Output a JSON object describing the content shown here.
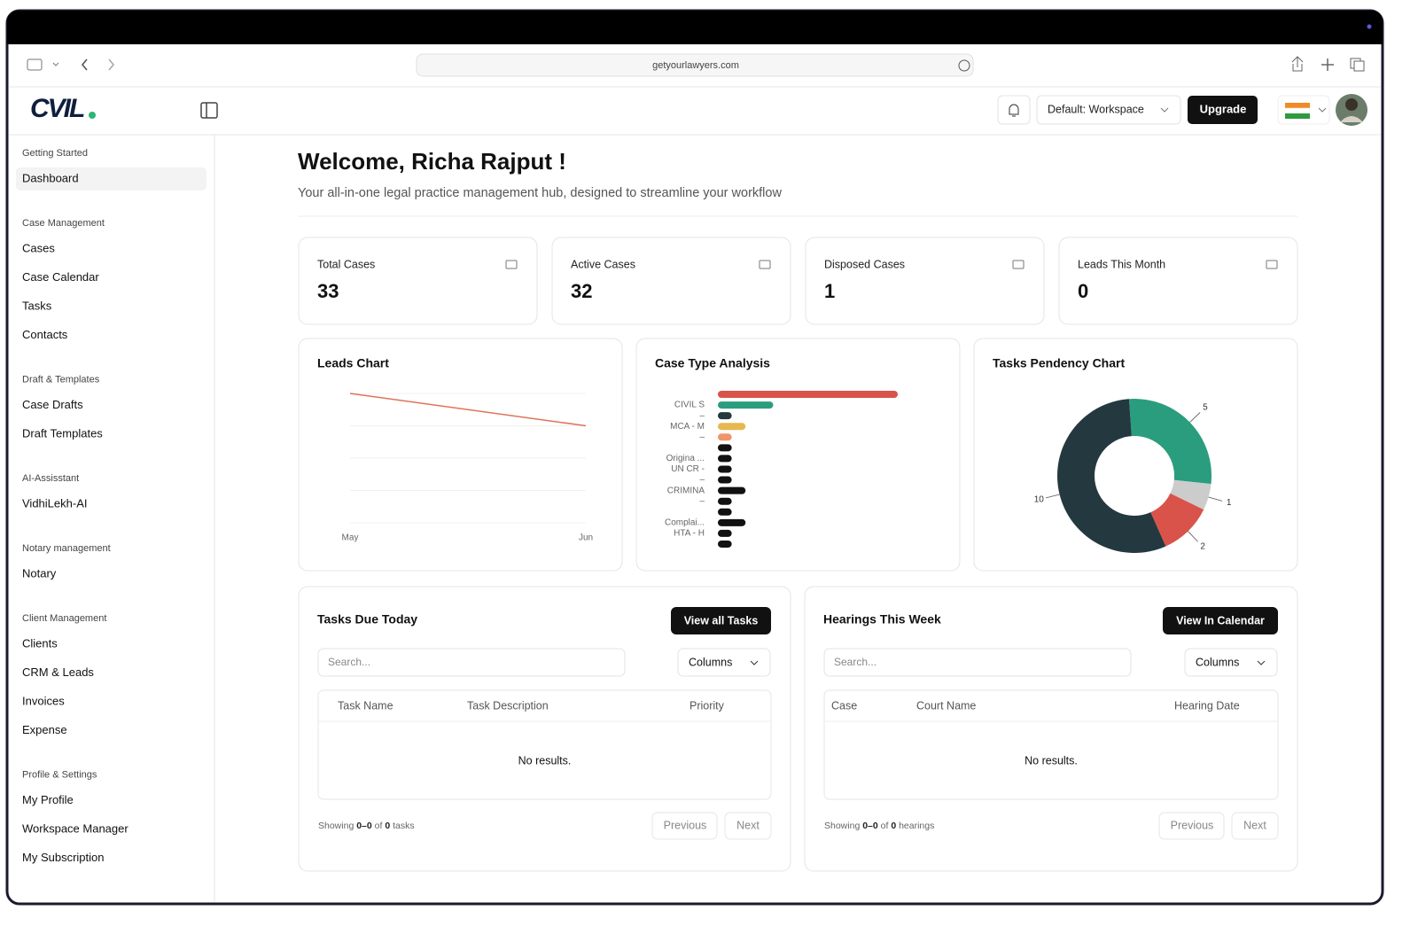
{
  "browser": {
    "url": "getyourlawyers.com"
  },
  "header": {
    "logo": "CVIL",
    "workspace": "Default: Workspace",
    "upgrade": "Upgrade"
  },
  "sidebar": [
    {
      "title": "Getting Started",
      "items": [
        "Dashboard"
      ]
    },
    {
      "title": "Case Management",
      "items": [
        "Cases",
        "Case Calendar",
        "Tasks",
        "Contacts"
      ]
    },
    {
      "title": "Draft & Templates",
      "items": [
        "Case Drafts",
        "Draft Templates"
      ]
    },
    {
      "title": "AI-Assisstant",
      "items": [
        "VidhiLekh-AI"
      ]
    },
    {
      "title": "Notary management",
      "items": [
        "Notary"
      ]
    },
    {
      "title": "Client Management",
      "items": [
        "Clients",
        "CRM & Leads",
        "Invoices",
        "Expense"
      ]
    },
    {
      "title": "Profile & Settings",
      "items": [
        "My Profile",
        "Workspace Manager",
        "My Subscription"
      ]
    }
  ],
  "welcome": {
    "title": "Welcome, Richa Rajput !",
    "subtitle": "Your all-in-one legal practice management hub, designed to streamline your workflow"
  },
  "stats": [
    {
      "label": "Total Cases",
      "value": 33
    },
    {
      "label": "Active Cases",
      "value": 32
    },
    {
      "label": "Disposed Cases",
      "value": 1
    },
    {
      "label": "Leads This Month",
      "value": 0
    }
  ],
  "leads_chart": {
    "type": "line",
    "title": "Leads Chart",
    "categories": [
      "May",
      "Jun"
    ],
    "values": [
      4,
      3
    ],
    "color": "#e0735a",
    "ylim": [
      0,
      4
    ],
    "yticks": [
      0,
      1,
      2,
      3,
      4
    ],
    "grid": true
  },
  "case_chart": {
    "type": "bar",
    "title": "Case Type Analysis",
    "categories": [
      null,
      "CIVIL S",
      "–",
      "MCA - M",
      "–",
      null,
      "Origina ...",
      "UN CR -",
      "–",
      "CRIMINA",
      "–",
      null,
      "Complai...",
      "HTA - H",
      null
    ],
    "values": [
      13,
      4,
      1,
      2,
      1,
      1,
      1,
      1,
      1,
      2,
      1,
      1,
      2,
      1,
      1
    ],
    "colors": [
      "#d9534a",
      "#2a9d7f",
      "#24383f",
      "#e6b84f",
      "#f0956a",
      "#111111",
      "#111111",
      "#111111",
      "#111111",
      "#111111",
      "#111111",
      "#111111",
      "#111111",
      "#111111",
      "#111111"
    ],
    "xlim": [
      0,
      13
    ]
  },
  "pendency_chart": {
    "type": "pie",
    "title": "Tasks Pendency Chart",
    "values": [
      5,
      1,
      2,
      10
    ],
    "colors": [
      "#2a9d7f",
      "#cccccc",
      "#d9534a",
      "#24383f"
    ]
  },
  "tasks": {
    "title": "Tasks Due Today",
    "button": "View all Tasks",
    "search": "Search...",
    "columns_button": "Columns",
    "headers": [
      "Task Name",
      "Task Description",
      "Priority"
    ],
    "empty": "No results.",
    "footer": {
      "prefix": "Showing",
      "range": "0–0",
      "of": "of",
      "total": 0,
      "unit": "tasks"
    },
    "previous": "Previous",
    "next": "Next"
  },
  "hearings": {
    "title": "Hearings This Week",
    "button": "View In Calendar",
    "search": "Search...",
    "columns_button": "Columns",
    "headers": [
      "Case",
      "Court Name",
      "Hearing Date"
    ],
    "empty": "No results.",
    "footer": {
      "prefix": "Showing",
      "range": "0–0",
      "of": "of",
      "total": 0,
      "unit": "hearings"
    },
    "previous": "Previous",
    "next": "Next"
  }
}
